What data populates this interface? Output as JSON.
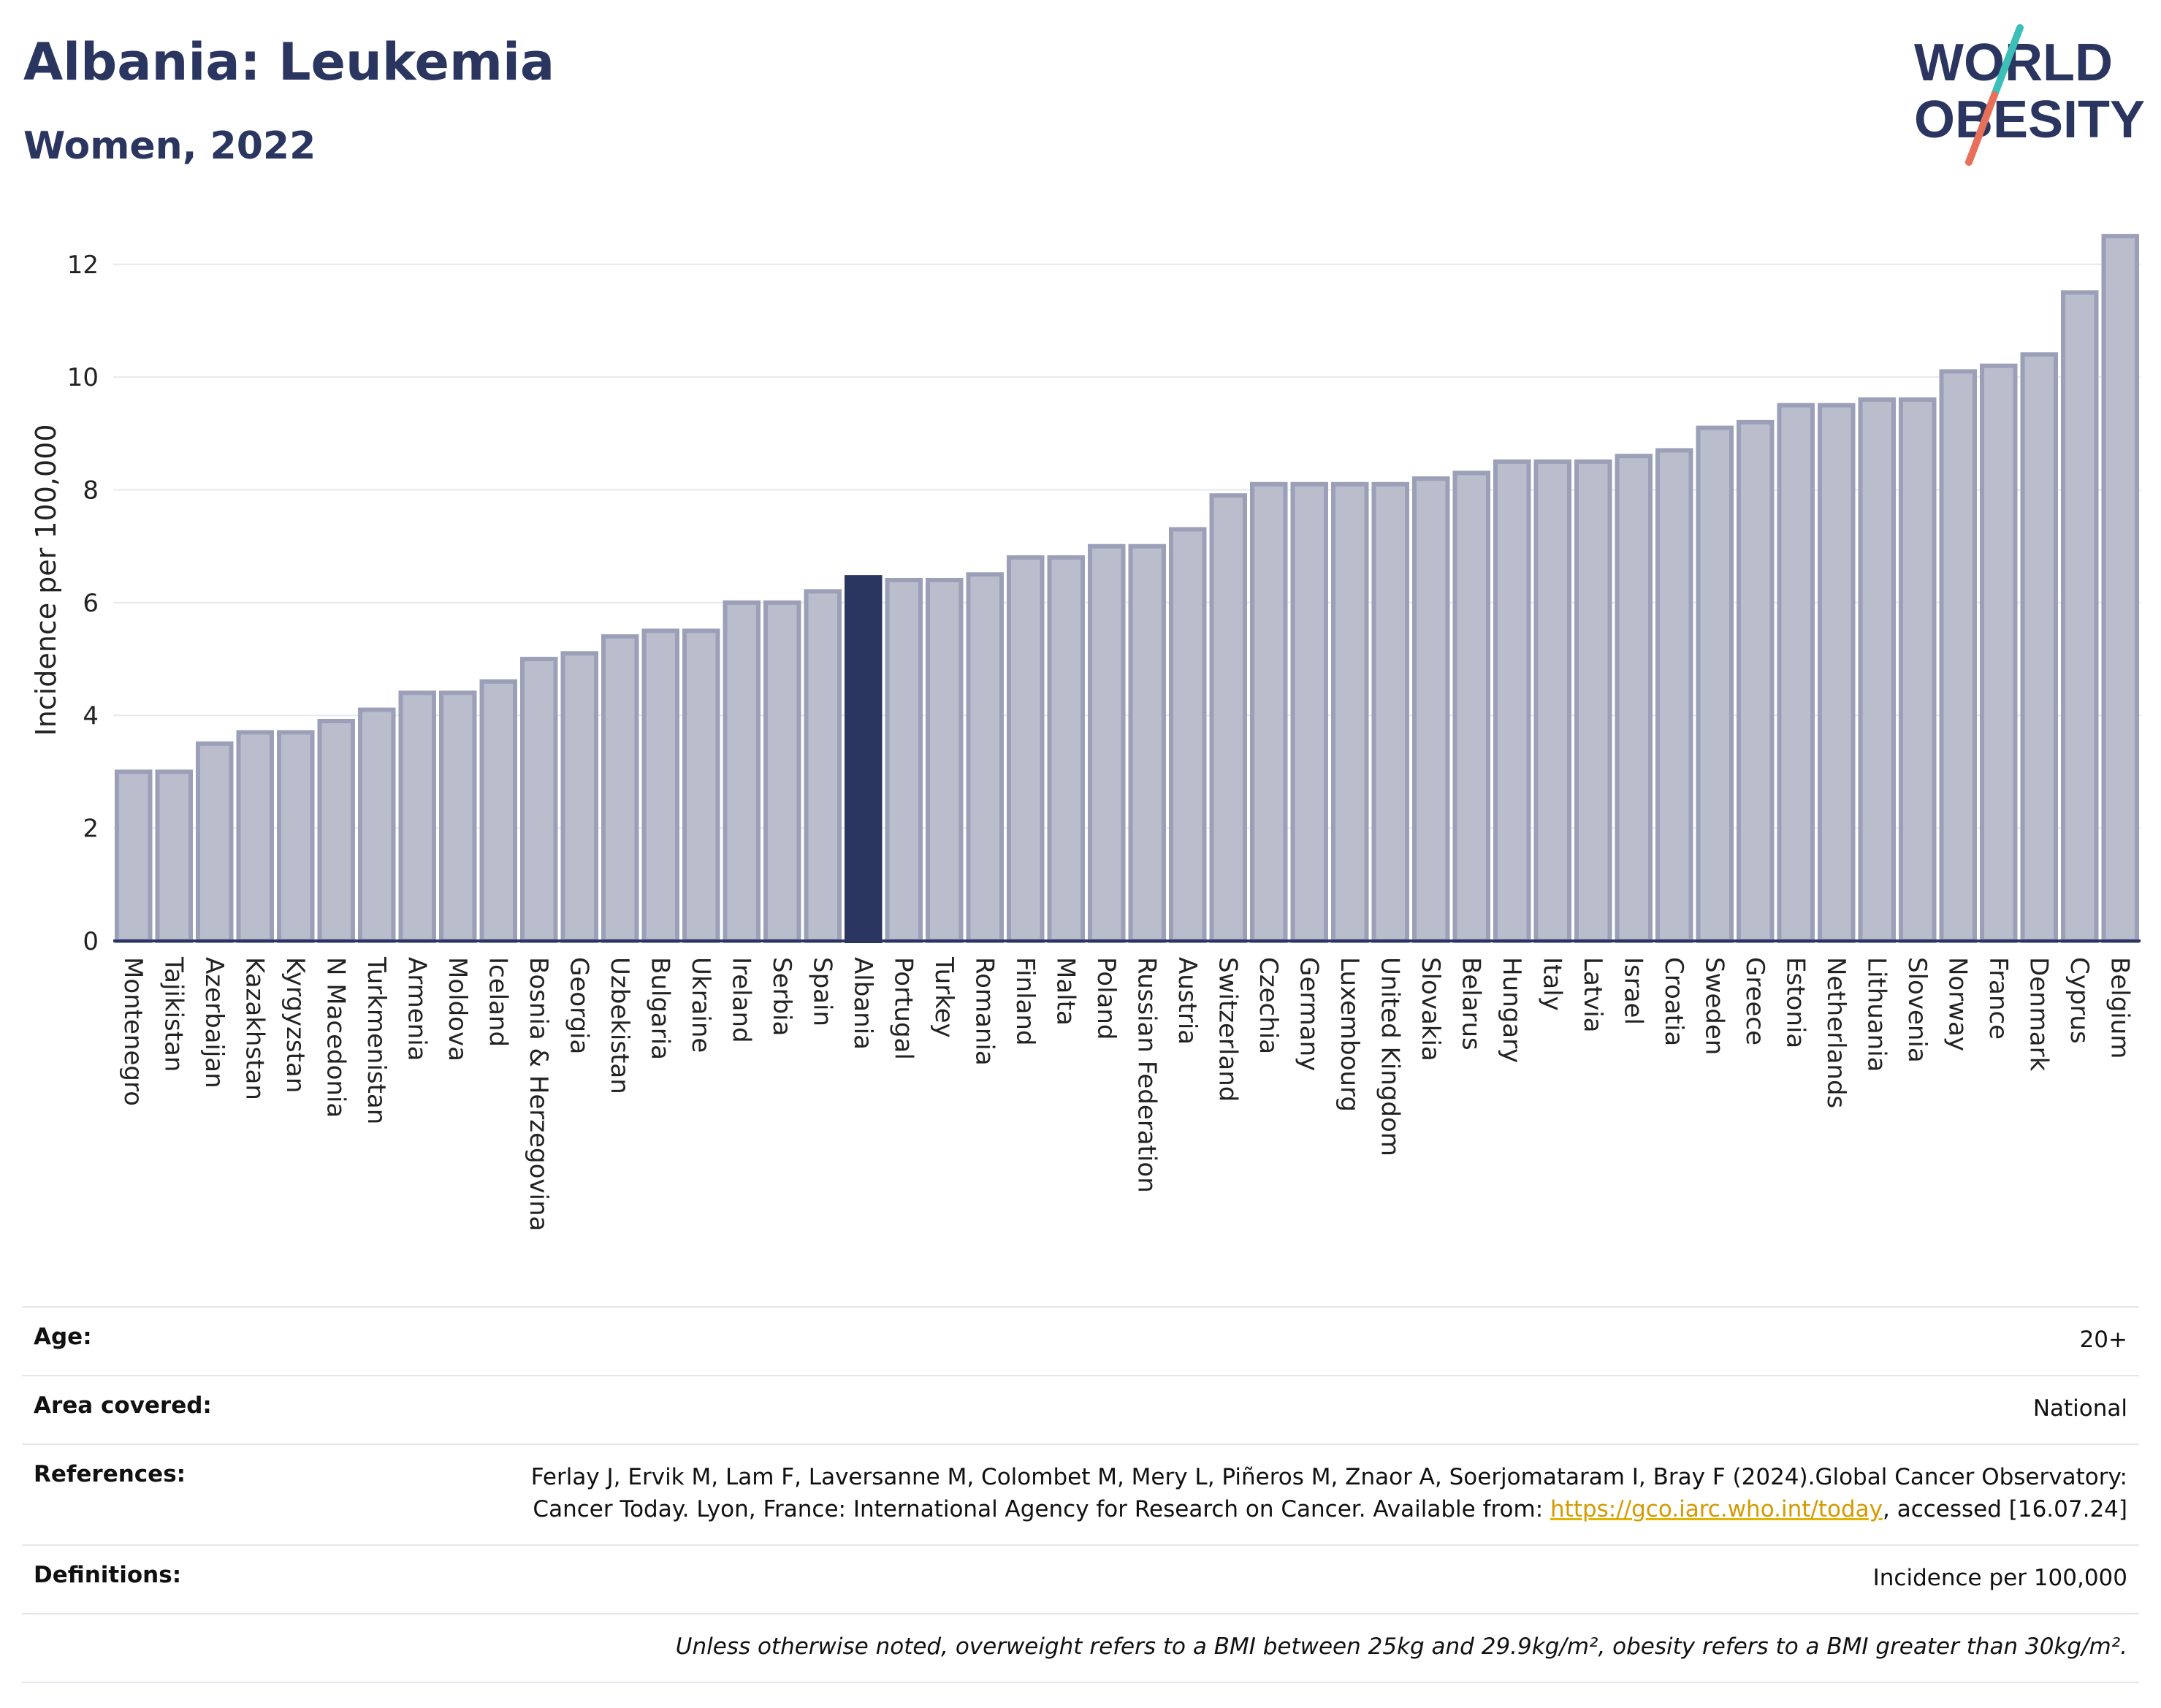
{
  "header": {
    "title": "Albania: Leukemia",
    "subtitle": "Women, 2022"
  },
  "logo": {
    "line1": "WORLD",
    "line2": "OBESITY",
    "colors": {
      "text": "#2a3560",
      "slash_top": "#3cbfb8",
      "slash_bottom": "#e8705a"
    }
  },
  "chart_data": {
    "type": "bar",
    "title": "Albania: Leukemia",
    "subtitle": "Women, 2022",
    "ylabel": "Incidence per 100,000",
    "xlabel": "",
    "ylim": [
      0,
      12.8
    ],
    "yticks": [
      0,
      2,
      4,
      6,
      8,
      10,
      12
    ],
    "grid": true,
    "highlight": "Albania",
    "colors": {
      "bar": "#b9bdcc",
      "bar_edge": "#9ba0b8",
      "highlight": "#2a3560",
      "axis": "#2a3560",
      "grid": "#e6e8ee"
    },
    "categories": [
      "Montenegro",
      "Tajikistan",
      "Azerbaijan",
      "Kazakhstan",
      "Kyrgyzstan",
      "N Macedonia",
      "Turkmenistan",
      "Armenia",
      "Moldova",
      "Iceland",
      "Bosnia & Herzegovina",
      "Georgia",
      "Uzbekistan",
      "Bulgaria",
      "Ukraine",
      "Ireland",
      "Serbia",
      "Spain",
      "Albania",
      "Portugal",
      "Turkey",
      "Romania",
      "Finland",
      "Malta",
      "Poland",
      "Russian Federation",
      "Austria",
      "Switzerland",
      "Czechia",
      "Germany",
      "Luxembourg",
      "United Kingdom",
      "Slovakia",
      "Belarus",
      "Hungary",
      "Italy",
      "Latvia",
      "Israel",
      "Croatia",
      "Sweden",
      "Greece",
      "Estonia",
      "Netherlands",
      "Lithuania",
      "Slovenia",
      "Norway",
      "France",
      "Denmark",
      "Cyprus",
      "Belgium"
    ],
    "values": [
      3.0,
      3.0,
      3.5,
      3.7,
      3.7,
      3.9,
      4.1,
      4.4,
      4.4,
      4.6,
      5.0,
      5.1,
      5.4,
      5.5,
      5.5,
      6.0,
      6.0,
      6.2,
      6.45,
      6.4,
      6.4,
      6.5,
      6.8,
      6.8,
      7.0,
      7.0,
      7.3,
      7.9,
      8.1,
      8.1,
      8.1,
      8.1,
      8.2,
      8.3,
      8.5,
      8.5,
      8.5,
      8.6,
      8.7,
      9.1,
      9.2,
      9.5,
      9.5,
      9.6,
      9.6,
      10.1,
      10.2,
      10.4,
      11.5,
      12.5
    ]
  },
  "info": {
    "age_label": "Age:",
    "age_value": "20+",
    "area_label": "Area covered:",
    "area_value": "National",
    "references_label": "References:",
    "references_text_1": "Ferlay J, Ervik M, Lam F, Laversanne M, Colombet M, Mery L, Piñeros M, Znaor A, Soerjomataram I, Bray F (2024).Global Cancer Observatory: Cancer Today. Lyon, France: International Agency for Research on Cancer. Available from: ",
    "references_link": "https://gco.iarc.who.int/today",
    "references_text_2": ", accessed [16.07.24]",
    "definitions_label": "Definitions:",
    "definitions_value": "Incidence per 100,000",
    "note": "Unless otherwise noted, overweight refers to a BMI between 25kg and 29.9kg/m², obesity refers to a BMI greater than 30kg/m²."
  }
}
